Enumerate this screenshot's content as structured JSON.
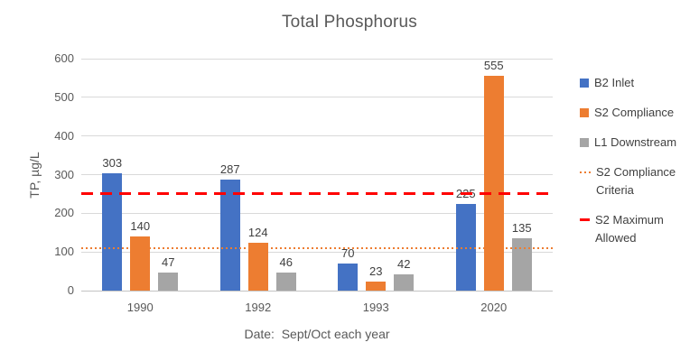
{
  "chart_data": {
    "type": "bar",
    "title": "Total Phosphorus",
    "categories": [
      "1990",
      "1992",
      "1993",
      "2020"
    ],
    "series": [
      {
        "name": "B2 Inlet",
        "color": "#4472C4",
        "values": [
          303,
          287,
          70,
          225
        ]
      },
      {
        "name": "S2 Compliance",
        "color": "#ED7D31",
        "values": [
          140,
          124,
          23,
          555
        ]
      },
      {
        "name": "L1 Downstream",
        "color": "#A5A5A5",
        "values": [
          47,
          46,
          42,
          135
        ]
      }
    ],
    "reference_lines": [
      {
        "name": "S2 Compliance Criteria",
        "value": 110,
        "color": "#ED7D31",
        "style": "dotted"
      },
      {
        "name": "S2 Maximum Allowed",
        "value": 250,
        "color": "#FF0000",
        "style": "dashed"
      }
    ],
    "xlabel": "Date:  Sept/Oct each year",
    "ylabel": "TP, µg/L",
    "ylim": [
      0,
      600
    ],
    "yticks": [
      0,
      100,
      200,
      300,
      400,
      500,
      600
    ],
    "grid": true,
    "data_labels": true,
    "legend_position": "right",
    "legend_items": [
      {
        "label": "B2 Inlet",
        "swatch": "square",
        "color": "#4472C4"
      },
      {
        "label": "S2 Compliance",
        "swatch": "square",
        "color": "#ED7D31"
      },
      {
        "label": "L1 Downstream",
        "swatch": "square",
        "color": "#A5A5A5"
      },
      {
        "label": "S2 Compliance Criteria",
        "swatch": "dotted",
        "color": "#ED7D31"
      },
      {
        "label": "S2 Maximum Allowed",
        "swatch": "dash",
        "color": "#FF0000"
      }
    ],
    "text_colors": {
      "title": "#595959",
      "ticks": "#595959",
      "data_labels": "#404040"
    }
  }
}
